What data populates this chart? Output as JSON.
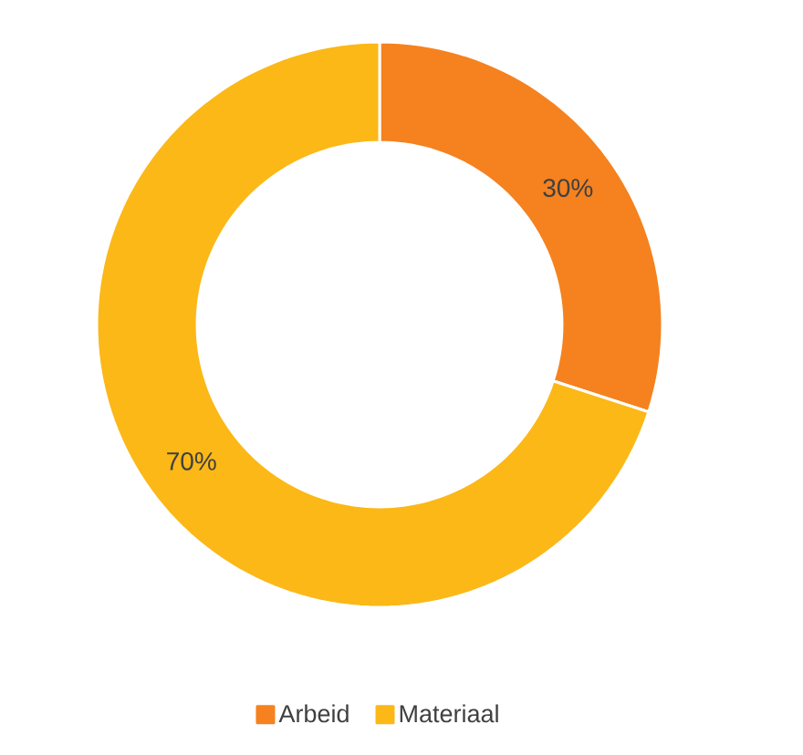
{
  "chart_data": {
    "type": "donut",
    "categories": [
      "Arbeid",
      "Materiaal"
    ],
    "values": [
      30,
      70
    ],
    "colors": [
      "#f5821f",
      "#fbb817"
    ],
    "value_labels": [
      "30%",
      "70%"
    ],
    "legend": "bottom"
  }
}
